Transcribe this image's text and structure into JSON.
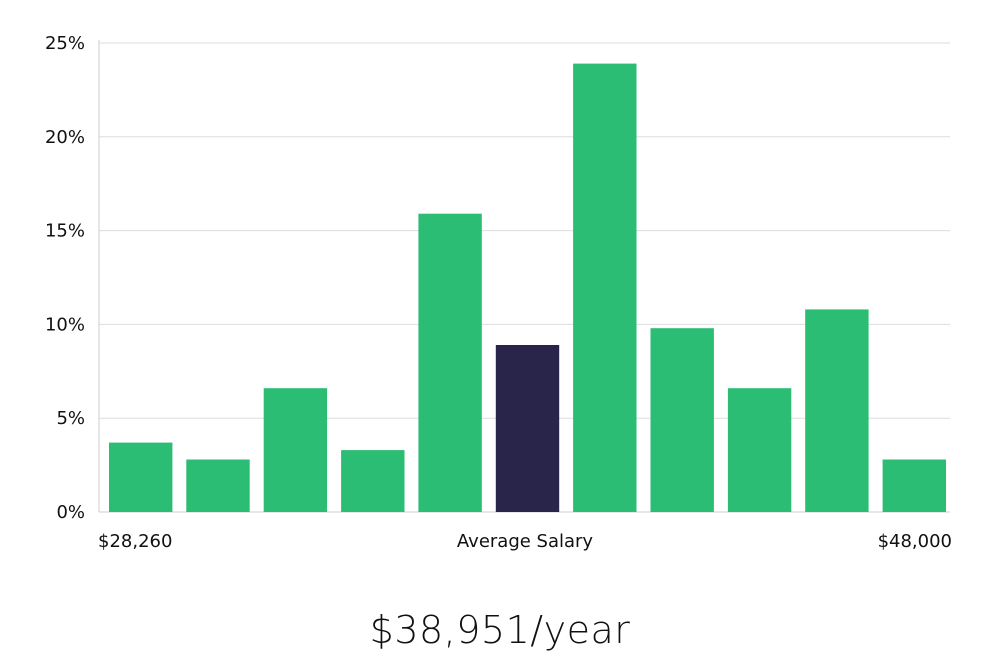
{
  "chart_data": {
    "type": "bar",
    "categories": [
      "1",
      "2",
      "3",
      "4",
      "5",
      "6",
      "7",
      "8",
      "9",
      "10",
      "11"
    ],
    "values": [
      3.7,
      2.8,
      6.6,
      3.3,
      15.9,
      8.9,
      23.9,
      9.8,
      6.6,
      10.8,
      2.8
    ],
    "highlight_index": 5,
    "yticks": [
      "0%",
      "5%",
      "10%",
      "15%",
      "20%",
      "25%"
    ],
    "ylim": [
      0,
      25
    ],
    "grid": true,
    "x_labels": {
      "left": "$28,260",
      "center": "Average Salary",
      "right": "$48,000"
    },
    "colors": {
      "bar": "#2bbd74",
      "highlight": "#29254a",
      "grid": "#dddddd",
      "axis": "#cccccc"
    }
  },
  "headline": "$38,951/year"
}
